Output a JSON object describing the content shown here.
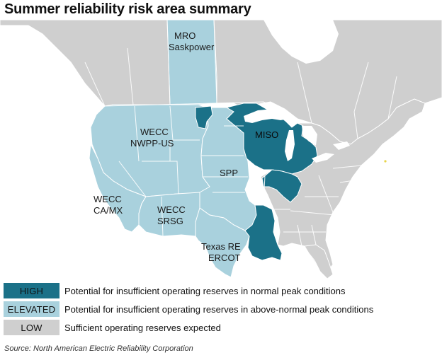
{
  "title": "Summer reliability risk area summary",
  "colors": {
    "high": "#1b7188",
    "elevated": "#a9d1dd",
    "low": "#cfcfcf",
    "lowDark": "#bdbdbd",
    "border": "#ffffff",
    "water": "#ffffff"
  },
  "regions": {
    "mro_saskpower": [
      "MRO",
      "Saskpower"
    ],
    "wecc_nwpp_us": [
      "WECC",
      "NWPP-US"
    ],
    "miso": [
      "MISO"
    ],
    "spp": [
      "SPP"
    ],
    "wecc_ca_mx": [
      "WECC",
      "CA/MX"
    ],
    "wecc_srsg": [
      "WECC",
      "SRSG"
    ],
    "texas_re_ercot": [
      "Texas RE",
      "ERCOT"
    ]
  },
  "legend": {
    "items": [
      {
        "level": "high",
        "label": "HIGH",
        "description": "Potential for insufficient operating reserves in normal peak conditions"
      },
      {
        "level": "elevated",
        "label": "ELEVATED",
        "description": "Potential for insufficient operating reserves in above-normal peak conditions"
      },
      {
        "level": "low",
        "label": "LOW",
        "description": "Sufficient operating reserves expected"
      }
    ]
  },
  "source": "Source: North American Electric Reliability Corporation"
}
